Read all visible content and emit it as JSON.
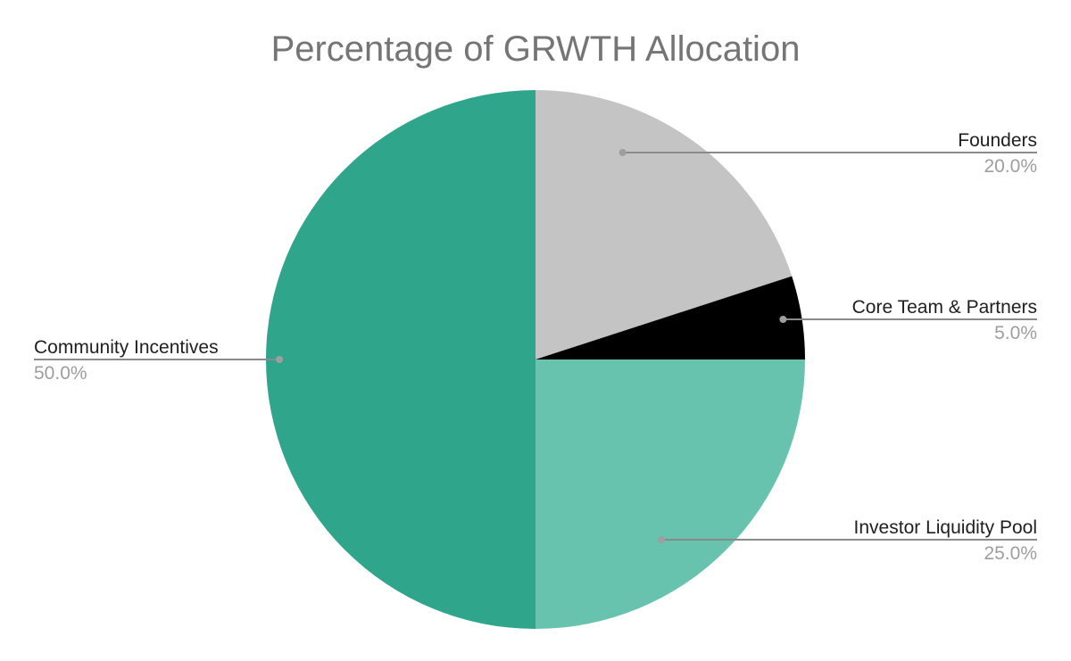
{
  "chart_data": {
    "type": "pie",
    "title": "Percentage of GRWTH Allocation",
    "slices": [
      {
        "name": "Founders",
        "value": 20.0,
        "label": "20.0%",
        "color": "#c4c4c4"
      },
      {
        "name": "Core Team & Partners",
        "value": 5.0,
        "label": "5.0%",
        "color": "#000000"
      },
      {
        "name": "Investor Liquidity Pool",
        "value": 25.0,
        "label": "25.0%",
        "color": "#68c3ae"
      },
      {
        "name": "Community Incentives",
        "value": 50.0,
        "label": "50.0%",
        "color": "#2fa68b"
      }
    ],
    "start": "top",
    "direction": "clockwise",
    "legend": "none"
  }
}
